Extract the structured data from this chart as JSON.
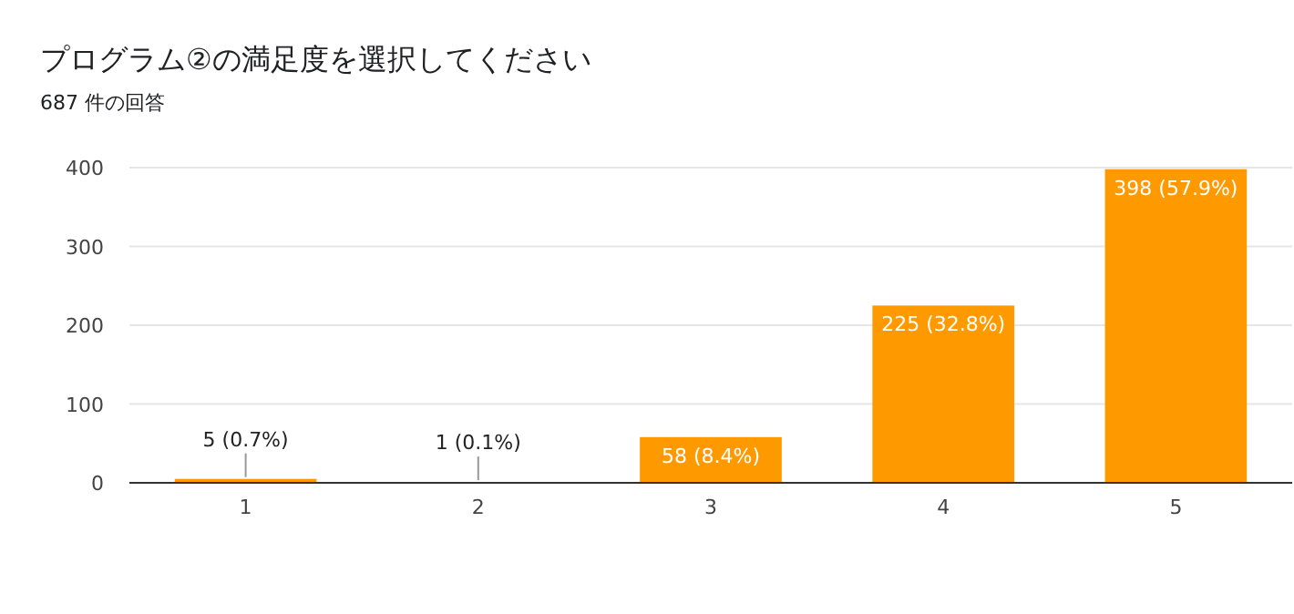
{
  "chart_data": {
    "type": "bar",
    "title": "プログラム②の満足度を選択してください",
    "subtitle": "687 件の回答",
    "categories": [
      "1",
      "2",
      "3",
      "4",
      "5"
    ],
    "values": [
      5,
      1,
      58,
      225,
      398
    ],
    "value_labels": [
      "5 (0.7%)",
      "1 (0.1%)",
      "58 (8.4%)",
      "225 (32.8%)",
      "398 (57.9%)"
    ],
    "color": "#ff9900",
    "ylim": [
      0,
      400
    ],
    "yticks": [
      0,
      100,
      200,
      300,
      400
    ],
    "grid": "y"
  }
}
